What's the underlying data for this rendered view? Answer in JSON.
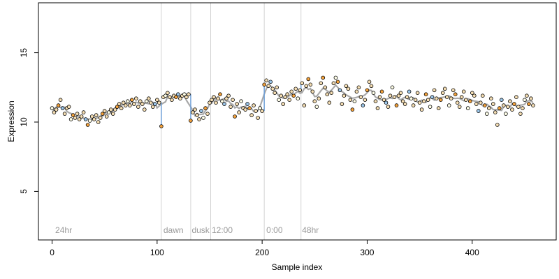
{
  "chart_data": {
    "type": "scatter",
    "title": "",
    "xlabel": "Sample index",
    "ylabel": "Expression",
    "xlim": [
      -13,
      480
    ],
    "ylim": [
      1.5,
      18.6
    ],
    "xticks": [
      0,
      100,
      200,
      300,
      400
    ],
    "yticks": [
      5,
      10,
      15
    ],
    "xtick_labels": [
      "0",
      "100",
      "200",
      "300",
      "400"
    ],
    "ytick_labels": [
      "5",
      "10",
      "15"
    ],
    "grid": false,
    "legend": "none",
    "colors": {
      "axis": "#000000",
      "guide": "#d3d3d3",
      "annotation": "#9a9a9a",
      "fit_line": "#999999",
      "step_line": "#6fa0d8",
      "point_outline": "#000000",
      "point_default": "#f5deb3",
      "point_light": "#ffffe8",
      "point_orange": "#f4a23c",
      "point_blue": "#9cc7ea"
    },
    "vertical_guides": [
      {
        "x": 104,
        "label": ""
      },
      {
        "x": 132,
        "label": ""
      },
      {
        "x": 151,
        "label": ""
      },
      {
        "x": 202,
        "label": ""
      },
      {
        "x": 237,
        "label": ""
      }
    ],
    "annotations": [
      {
        "x": 3,
        "y": 2.0,
        "text": "24hr"
      },
      {
        "x": 106,
        "y": 2.0,
        "text": "dawn"
      },
      {
        "x": 133,
        "y": 2.0,
        "text": "dusk"
      },
      {
        "x": 152,
        "y": 2.0,
        "text": "12:00"
      },
      {
        "x": 204,
        "y": 2.0,
        "text": "0:00"
      },
      {
        "x": 238,
        "y": 2.0,
        "text": "48hr"
      }
    ],
    "series": [
      {
        "points": [
          [
            0,
            11.0
          ],
          [
            2,
            10.7
          ],
          [
            4,
            10.9
          ],
          [
            6,
            11.2
          ],
          [
            8,
            11.6
          ],
          [
            10,
            11.0
          ],
          [
            12,
            10.6
          ],
          [
            14,
            11.0
          ],
          [
            16,
            11.1
          ],
          [
            18,
            10.2
          ],
          [
            20,
            10.5
          ],
          [
            22,
            10.3
          ],
          [
            24,
            10.6
          ],
          [
            26,
            10.2
          ],
          [
            28,
            10.4
          ],
          [
            30,
            10.7
          ],
          [
            32,
            10.2
          ],
          [
            34,
            9.8
          ],
          [
            36,
            10.1
          ],
          [
            38,
            10.4
          ],
          [
            40,
            10.2
          ],
          [
            42,
            10.5
          ],
          [
            44,
            10.0
          ],
          [
            46,
            10.3
          ],
          [
            48,
            10.6
          ],
          [
            50,
            10.8
          ],
          [
            52,
            10.4
          ],
          [
            54,
            10.7
          ],
          [
            56,
            10.9
          ],
          [
            58,
            10.6
          ],
          [
            60,
            10.9
          ],
          [
            62,
            11.1
          ],
          [
            64,
            11.3
          ],
          [
            66,
            11.0
          ],
          [
            68,
            11.4
          ],
          [
            70,
            11.2
          ],
          [
            72,
            11.5
          ],
          [
            74,
            11.2
          ],
          [
            76,
            11.6
          ],
          [
            78,
            11.3
          ],
          [
            80,
            11.7
          ],
          [
            82,
            11.1
          ],
          [
            84,
            11.5
          ],
          [
            86,
            11.3
          ],
          [
            88,
            10.9
          ],
          [
            90,
            11.5
          ],
          [
            92,
            11.7
          ],
          [
            94,
            11.4
          ],
          [
            96,
            11.1
          ],
          [
            98,
            11.3
          ],
          [
            100,
            11.6
          ],
          [
            102,
            11.4
          ],
          [
            104,
            9.7
          ],
          [
            106,
            11.8
          ],
          [
            108,
            11.9
          ],
          [
            110,
            12.1
          ],
          [
            112,
            11.8
          ],
          [
            114,
            11.6
          ],
          [
            116,
            11.9
          ],
          [
            118,
            11.8
          ],
          [
            120,
            12.0
          ],
          [
            122,
            11.7
          ],
          [
            124,
            11.9
          ],
          [
            126,
            12.0
          ],
          [
            128,
            11.8
          ],
          [
            130,
            12.0
          ],
          [
            132,
            10.1
          ],
          [
            134,
            10.7
          ],
          [
            136,
            10.9
          ],
          [
            138,
            10.5
          ],
          [
            140,
            10.2
          ],
          [
            142,
            10.8
          ],
          [
            144,
            10.3
          ],
          [
            146,
            11.0
          ],
          [
            148,
            10.6
          ],
          [
            150,
            11.4
          ],
          [
            152,
            11.6
          ],
          [
            154,
            11.8
          ],
          [
            156,
            11.4
          ],
          [
            158,
            11.7
          ],
          [
            160,
            12.0
          ],
          [
            162,
            11.5
          ],
          [
            164,
            11.3
          ],
          [
            166,
            11.7
          ],
          [
            168,
            11.9
          ],
          [
            170,
            11.1
          ],
          [
            172,
            11.6
          ],
          [
            174,
            10.4
          ],
          [
            176,
            11.3
          ],
          [
            178,
            10.7
          ],
          [
            180,
            11.5
          ],
          [
            182,
            11.0
          ],
          [
            184,
            10.9
          ],
          [
            186,
            11.3
          ],
          [
            188,
            11.0
          ],
          [
            190,
            10.5
          ],
          [
            192,
            11.2
          ],
          [
            194,
            10.8
          ],
          [
            196,
            10.3
          ],
          [
            198,
            11.0
          ],
          [
            200,
            10.8
          ],
          [
            202,
            12.7
          ],
          [
            204,
            13.0
          ],
          [
            206,
            12.6
          ],
          [
            208,
            12.9
          ],
          [
            210,
            12.4
          ],
          [
            212,
            12.1
          ],
          [
            214,
            12.5
          ],
          [
            216,
            11.6
          ],
          [
            218,
            11.9
          ],
          [
            220,
            11.3
          ],
          [
            222,
            11.8
          ],
          [
            224,
            12.0
          ],
          [
            226,
            11.6
          ],
          [
            228,
            12.2
          ],
          [
            230,
            11.9
          ],
          [
            232,
            12.4
          ],
          [
            234,
            11.7
          ],
          [
            236,
            12.3
          ],
          [
            238,
            12.8
          ],
          [
            240,
            11.2
          ],
          [
            242,
            12.6
          ],
          [
            244,
            13.1
          ],
          [
            246,
            12.7
          ],
          [
            248,
            12.2
          ],
          [
            250,
            11.5
          ],
          [
            252,
            11.1
          ],
          [
            254,
            11.7
          ],
          [
            256,
            12.8
          ],
          [
            258,
            13.2
          ],
          [
            260,
            12.5
          ],
          [
            262,
            12.0
          ],
          [
            264,
            11.4
          ],
          [
            266,
            12.1
          ],
          [
            268,
            12.8
          ],
          [
            270,
            13.2
          ],
          [
            272,
            12.9
          ],
          [
            274,
            12.3
          ],
          [
            276,
            11.3
          ],
          [
            278,
            11.9
          ],
          [
            280,
            12.6
          ],
          [
            282,
            12.4
          ],
          [
            284,
            11.6
          ],
          [
            286,
            10.9
          ],
          [
            288,
            11.5
          ],
          [
            290,
            12.2
          ],
          [
            292,
            12.5
          ],
          [
            294,
            11.8
          ],
          [
            296,
            11.2
          ],
          [
            298,
            11.6
          ],
          [
            300,
            12.3
          ],
          [
            302,
            12.9
          ],
          [
            304,
            12.6
          ],
          [
            306,
            12.1
          ],
          [
            308,
            11.5
          ],
          [
            310,
            11.0
          ],
          [
            312,
            11.8
          ],
          [
            314,
            12.2
          ],
          [
            316,
            11.6
          ],
          [
            318,
            11.4
          ],
          [
            320,
            11.1
          ],
          [
            322,
            11.9
          ],
          [
            324,
            12.5
          ],
          [
            326,
            11.8
          ],
          [
            328,
            11.2
          ],
          [
            330,
            11.9
          ],
          [
            332,
            12.1
          ],
          [
            334,
            11.5
          ],
          [
            336,
            11.3
          ],
          [
            338,
            11.8
          ],
          [
            340,
            12.2
          ],
          [
            342,
            11.7
          ],
          [
            344,
            11.2
          ],
          [
            346,
            11.6
          ],
          [
            348,
            12.1
          ],
          [
            350,
            11.4
          ],
          [
            352,
            10.9
          ],
          [
            354,
            11.5
          ],
          [
            356,
            12.0
          ],
          [
            358,
            11.6
          ],
          [
            360,
            11.1
          ],
          [
            362,
            11.8
          ],
          [
            364,
            12.3
          ],
          [
            366,
            11.7
          ],
          [
            368,
            11.0
          ],
          [
            370,
            11.6
          ],
          [
            372,
            12.1
          ],
          [
            374,
            12.4
          ],
          [
            376,
            11.8
          ],
          [
            378,
            11.2
          ],
          [
            380,
            11.7
          ],
          [
            382,
            12.3
          ],
          [
            384,
            12.0
          ],
          [
            386,
            11.4
          ],
          [
            388,
            11.1
          ],
          [
            390,
            11.8
          ],
          [
            392,
            12.2
          ],
          [
            394,
            11.6
          ],
          [
            396,
            11.0
          ],
          [
            398,
            11.5
          ],
          [
            400,
            12.1
          ],
          [
            402,
            11.9
          ],
          [
            404,
            11.3
          ],
          [
            406,
            10.8
          ],
          [
            408,
            11.4
          ],
          [
            410,
            11.9
          ],
          [
            412,
            11.2
          ],
          [
            414,
            10.6
          ],
          [
            416,
            11.0
          ],
          [
            418,
            11.7
          ],
          [
            420,
            11.3
          ],
          [
            422,
            10.7
          ],
          [
            424,
            9.8
          ],
          [
            426,
            11.0
          ],
          [
            428,
            11.6
          ],
          [
            430,
            11.2
          ],
          [
            432,
            10.6
          ],
          [
            434,
            11.1
          ],
          [
            436,
            11.5
          ],
          [
            438,
            10.9
          ],
          [
            440,
            11.3
          ],
          [
            442,
            11.8
          ],
          [
            444,
            11.1
          ],
          [
            446,
            10.6
          ],
          [
            448,
            11.0
          ],
          [
            450,
            11.6
          ],
          [
            452,
            11.9
          ],
          [
            454,
            11.3
          ],
          [
            456,
            11.7
          ],
          [
            458,
            11.2
          ]
        ]
      }
    ]
  }
}
